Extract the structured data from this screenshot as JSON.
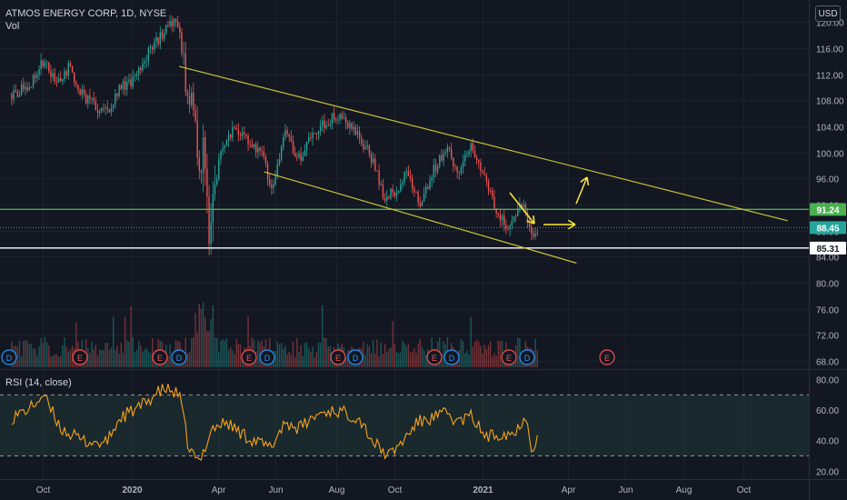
{
  "header": {
    "title": "ATMOS ENERGY CORP, 1D, NYSE",
    "vol_label": "Vol",
    "currency_button": "USD"
  },
  "rsi_label": "RSI (14, close)",
  "colors": {
    "background": "#131722",
    "grid": "#1e222d",
    "axis_text": "#b2b5be",
    "up": "#26a69a",
    "down": "#ef5350",
    "trend_line": "#c8c432",
    "arrow": "#ffeb3b",
    "support_green": "#4caf50",
    "support_white": "#ffffff",
    "rsi_line": "#f7a21b",
    "rsi_band": "#1f3838",
    "last_price": "#26a69a"
  },
  "chart_data": [
    {
      "type": "candlestick",
      "title": "ATMOS ENERGY CORP, 1D, NYSE",
      "currency": "USD",
      "x_ticks": [
        "Oct",
        "2020",
        "Apr",
        "Jun",
        "Aug",
        "Oct",
        "2021",
        "Apr",
        "Jun",
        "Aug",
        "Oct"
      ],
      "y_ticks": [
        68,
        72,
        76,
        80,
        84,
        88,
        92,
        96,
        100,
        104,
        108,
        112,
        116,
        120
      ],
      "y_tick_labels": [
        "68.00",
        "72.00",
        "76.00",
        "80.00",
        "84.00",
        "88.00",
        "92.00",
        "96.00",
        "100.00",
        "104.00",
        "108.00",
        "112.00",
        "116.00",
        "120.00"
      ],
      "ylim": [
        67.0,
        122.0
      ],
      "price_labels": [
        {
          "value": 91.24,
          "text": "91.24",
          "color": "#4caf50"
        },
        {
          "value": 88.45,
          "text": "88.45",
          "color": "#26a69a"
        },
        {
          "value": 85.31,
          "text": "85.31",
          "color": "#ffffff"
        }
      ],
      "horizontal_lines": [
        {
          "value": 91.24,
          "color": "#4caf50",
          "style": "solid"
        },
        {
          "value": 85.31,
          "color": "#ffffff",
          "style": "solid"
        },
        {
          "value": 88.45,
          "color": "#26a69a",
          "style": "dotted"
        }
      ],
      "earnings_markers": [
        "D",
        "E",
        "E",
        "D",
        "E",
        "D",
        "E",
        "D",
        "E",
        "D",
        "E",
        "D",
        "E"
      ],
      "series": [
        {
          "name": "price",
          "anchors": [
            {
              "x": "2019-08-30",
              "y": 109
            },
            {
              "x": "2019-09-15",
              "y": 110
            },
            {
              "x": "2019-09-25",
              "y": 112
            },
            {
              "x": "2019-10-01",
              "y": 114
            },
            {
              "x": "2019-10-15",
              "y": 111
            },
            {
              "x": "2019-10-28",
              "y": 113
            },
            {
              "x": "2019-11-10",
              "y": 109
            },
            {
              "x": "2019-11-25",
              "y": 107
            },
            {
              "x": "2019-12-05",
              "y": 106
            },
            {
              "x": "2019-12-20",
              "y": 110
            },
            {
              "x": "2020-01-05",
              "y": 111
            },
            {
              "x": "2020-01-20",
              "y": 116
            },
            {
              "x": "2020-02-01",
              "y": 118
            },
            {
              "x": "2020-02-12",
              "y": 120
            },
            {
              "x": "2020-02-20",
              "y": 119
            },
            {
              "x": "2020-02-28",
              "y": 110
            },
            {
              "x": "2020-03-05",
              "y": 107
            },
            {
              "x": "2020-03-12",
              "y": 97
            },
            {
              "x": "2020-03-17",
              "y": 101
            },
            {
              "x": "2020-03-23",
              "y": 86
            },
            {
              "x": "2020-03-26",
              "y": 93
            },
            {
              "x": "2020-04-05",
              "y": 101
            },
            {
              "x": "2020-04-20",
              "y": 104
            },
            {
              "x": "2020-05-05",
              "y": 101
            },
            {
              "x": "2020-05-20",
              "y": 99
            },
            {
              "x": "2020-05-27",
              "y": 94
            },
            {
              "x": "2020-06-10",
              "y": 103
            },
            {
              "x": "2020-06-25",
              "y": 99
            },
            {
              "x": "2020-07-10",
              "y": 103
            },
            {
              "x": "2020-07-25",
              "y": 105
            },
            {
              "x": "2020-08-05",
              "y": 106
            },
            {
              "x": "2020-08-20",
              "y": 103
            },
            {
              "x": "2020-09-05",
              "y": 100
            },
            {
              "x": "2020-09-20",
              "y": 93
            },
            {
              "x": "2020-10-01",
              "y": 94
            },
            {
              "x": "2020-10-15",
              "y": 97
            },
            {
              "x": "2020-10-28",
              "y": 92
            },
            {
              "x": "2020-11-10",
              "y": 97
            },
            {
              "x": "2020-11-25",
              "y": 101
            },
            {
              "x": "2020-12-05",
              "y": 97
            },
            {
              "x": "2020-12-20",
              "y": 101
            },
            {
              "x": "2020-12-28",
              "y": 99
            },
            {
              "x": "2021-01-05",
              "y": 95
            },
            {
              "x": "2021-01-15",
              "y": 91
            },
            {
              "x": "2021-01-28",
              "y": 88
            },
            {
              "x": "2021-02-05",
              "y": 90
            },
            {
              "x": "2021-02-12",
              "y": 92
            },
            {
              "x": "2021-02-19",
              "y": 89
            },
            {
              "x": "2021-02-24",
              "y": 87
            },
            {
              "x": "2021-03-01",
              "y": 88.45
            }
          ]
        },
        {
          "name": "RSI (14, close)",
          "y_ticks": [
            20,
            40,
            60,
            80
          ],
          "y_tick_labels": [
            "20.00",
            "40.00",
            "60.00",
            "80.00"
          ],
          "ylim": [
            16.0,
            84.5
          ],
          "band": [
            30,
            70
          ],
          "anchors": [
            {
              "x": "2019-08-30",
              "y": 55
            },
            {
              "x": "2019-09-20",
              "y": 62
            },
            {
              "x": "2019-10-01",
              "y": 70
            },
            {
              "x": "2019-10-20",
              "y": 48
            },
            {
              "x": "2019-11-10",
              "y": 40
            },
            {
              "x": "2019-12-05",
              "y": 38
            },
            {
              "x": "2019-12-20",
              "y": 55
            },
            {
              "x": "2020-01-10",
              "y": 62
            },
            {
              "x": "2020-01-25",
              "y": 70
            },
            {
              "x": "2020-02-05",
              "y": 74
            },
            {
              "x": "2020-02-20",
              "y": 70
            },
            {
              "x": "2020-03-01",
              "y": 35
            },
            {
              "x": "2020-03-12",
              "y": 25
            },
            {
              "x": "2020-03-25",
              "y": 48
            },
            {
              "x": "2020-04-10",
              "y": 52
            },
            {
              "x": "2020-04-25",
              "y": 45
            },
            {
              "x": "2020-05-10",
              "y": 40
            },
            {
              "x": "2020-05-27",
              "y": 35
            },
            {
              "x": "2020-06-10",
              "y": 52
            },
            {
              "x": "2020-06-25",
              "y": 48
            },
            {
              "x": "2020-07-15",
              "y": 58
            },
            {
              "x": "2020-07-30",
              "y": 60
            },
            {
              "x": "2020-08-10",
              "y": 58
            },
            {
              "x": "2020-08-25",
              "y": 55
            },
            {
              "x": "2020-09-10",
              "y": 38
            },
            {
              "x": "2020-09-25",
              "y": 30
            },
            {
              "x": "2020-10-10",
              "y": 40
            },
            {
              "x": "2020-10-25",
              "y": 52
            },
            {
              "x": "2020-11-10",
              "y": 55
            },
            {
              "x": "2020-11-25",
              "y": 58
            },
            {
              "x": "2020-12-05",
              "y": 52
            },
            {
              "x": "2020-12-20",
              "y": 56
            },
            {
              "x": "2021-01-05",
              "y": 42
            },
            {
              "x": "2021-01-20",
              "y": 45
            },
            {
              "x": "2021-02-05",
              "y": 45
            },
            {
              "x": "2021-02-15",
              "y": 58
            },
            {
              "x": "2021-02-22",
              "y": 34
            },
            {
              "x": "2021-03-01",
              "y": 46
            }
          ]
        }
      ],
      "trendlines": [
        {
          "name": "upper-trendline",
          "from": {
            "x": "2020-02-20",
            "y": 113.2
          },
          "to": {
            "x": "2021-11-15",
            "y": 89.5
          }
        },
        {
          "name": "lower-trendline",
          "from": {
            "x": "2020-05-20",
            "y": 97.0
          },
          "to": {
            "x": "2021-04-10",
            "y": 83.0
          }
        }
      ]
    }
  ]
}
